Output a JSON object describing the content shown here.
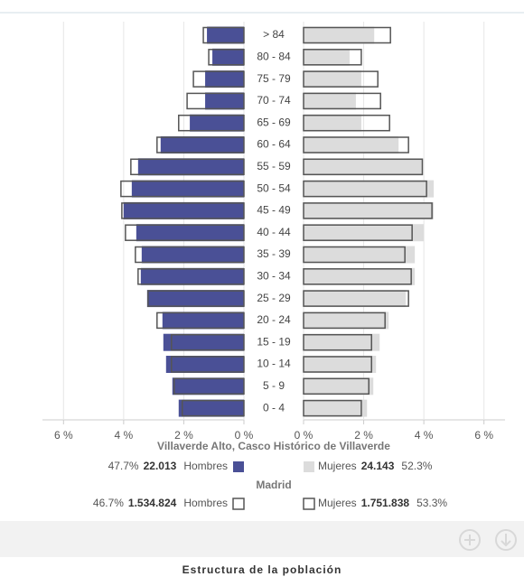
{
  "chart_data": {
    "type": "pyramid",
    "title": "Estructura de la población",
    "categories": [
      "> 84",
      "80 - 84",
      "75 - 79",
      "70 - 74",
      "65 - 69",
      "60 - 64",
      "55 - 59",
      "50 - 54",
      "45 - 49",
      "40 - 44",
      "35 - 39",
      "30 - 34",
      "25 - 29",
      "20 - 24",
      "15 - 19",
      "10 - 14",
      "5 - 9",
      "0 - 4"
    ],
    "xlim": [
      0,
      6.7
    ],
    "xticks": [
      {
        "value": 6,
        "label": "6 %"
      },
      {
        "value": 4,
        "label": "4 %"
      },
      {
        "value": 2,
        "label": "2 %"
      },
      {
        "value": 0,
        "label": "0 %"
      }
    ],
    "grid": true,
    "groups": [
      {
        "title": "Villaverde Alto, Casco Histórico de Villaverde",
        "style": "fill",
        "series": [
          {
            "name": "Hombres",
            "color": "#4a5096",
            "share": {
              "value": 47.7,
              "label": "47.7%"
            },
            "total": {
              "value": 22013,
              "label": "22.013"
            },
            "values": [
              1.23,
              1.05,
              1.29,
              1.29,
              1.8,
              2.77,
              3.52,
              3.73,
              4.0,
              3.58,
              3.4,
              3.43,
              3.22,
              2.71,
              2.68,
              2.59,
              2.38,
              2.17
            ]
          },
          {
            "name": "Mujeres",
            "color": "#dcdcdc",
            "share": {
              "value": 52.3,
              "label": "52.3%"
            },
            "total": {
              "value": 24143,
              "label": "24.143"
            },
            "values": [
              2.35,
              1.53,
              1.92,
              1.74,
              1.92,
              3.16,
              3.97,
              4.33,
              4.33,
              4.0,
              3.7,
              3.7,
              3.4,
              2.83,
              2.53,
              2.41,
              2.32,
              2.11
            ]
          }
        ]
      },
      {
        "title": "Madrid",
        "style": "outline",
        "series": [
          {
            "name": "Hombres",
            "color": "#555555",
            "share": {
              "value": 46.7,
              "label": "46.7%"
            },
            "total": {
              "value": 1534824,
              "label": "1.534.824"
            },
            "values": [
              1.35,
              1.17,
              1.68,
              1.89,
              2.17,
              2.89,
              3.76,
              4.09,
              4.06,
              3.94,
              3.61,
              3.52,
              3.19,
              2.89,
              2.41,
              2.41,
              2.32,
              2.05
            ]
          },
          {
            "name": "Mujeres",
            "color": "#555555",
            "share": {
              "value": 53.3,
              "label": "53.3%"
            },
            "total": {
              "value": 1751838,
              "label": "1.751.838"
            },
            "values": [
              2.89,
              1.92,
              2.47,
              2.56,
              2.86,
              3.49,
              3.95,
              4.09,
              4.27,
              3.61,
              3.37,
              3.58,
              3.49,
              2.71,
              2.26,
              2.26,
              2.17,
              1.92
            ]
          }
        ]
      }
    ]
  }
}
